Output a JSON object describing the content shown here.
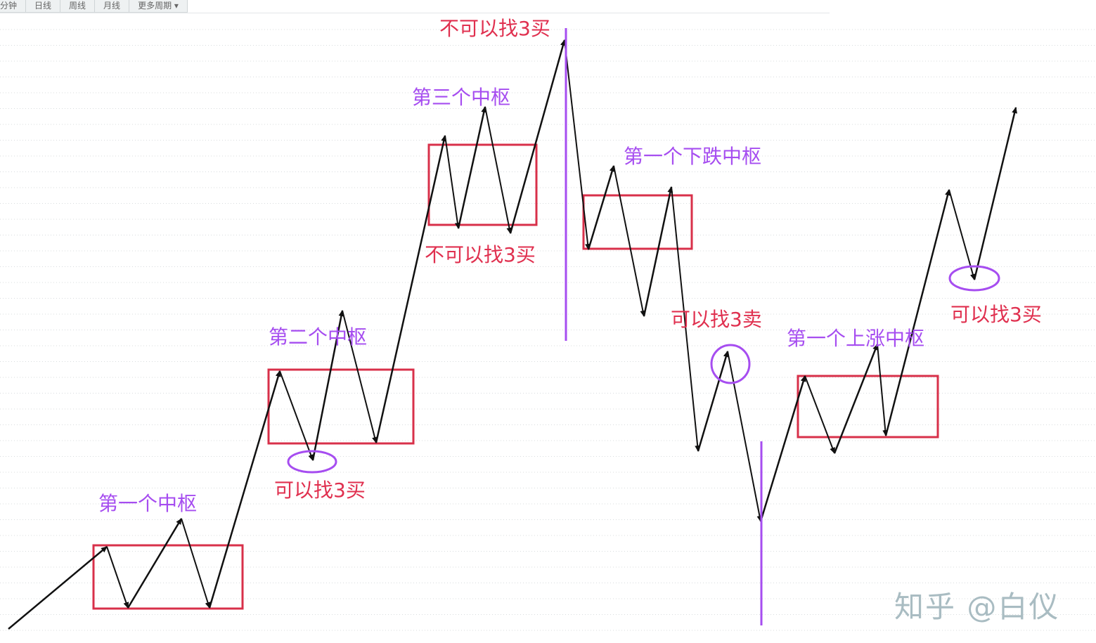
{
  "toolbar": {
    "tabs": [
      "分钟",
      "日线",
      "周线",
      "月线",
      "更多周期 ▾"
    ]
  },
  "colors": {
    "box": "#d8304a",
    "divider": "#a64df0",
    "circle": "#a64df0",
    "label_purple": "#a64df0",
    "label_red": "#e0304f",
    "arrow": "#111111"
  },
  "annotations": {
    "zs1": "第一个中枢",
    "zs2": "第二个中枢",
    "zs3": "第三个中枢",
    "down1": "第一个下跌中枢",
    "up1": "第一个上涨中枢",
    "buy3_a": "可以找3买",
    "no_buy3_a": "不可以找3买",
    "no_buy3_b": "不可以找3买",
    "sell3": "可以找3卖",
    "buy3_b": "可以找3买"
  },
  "watermark": "知乎 @白仪"
}
